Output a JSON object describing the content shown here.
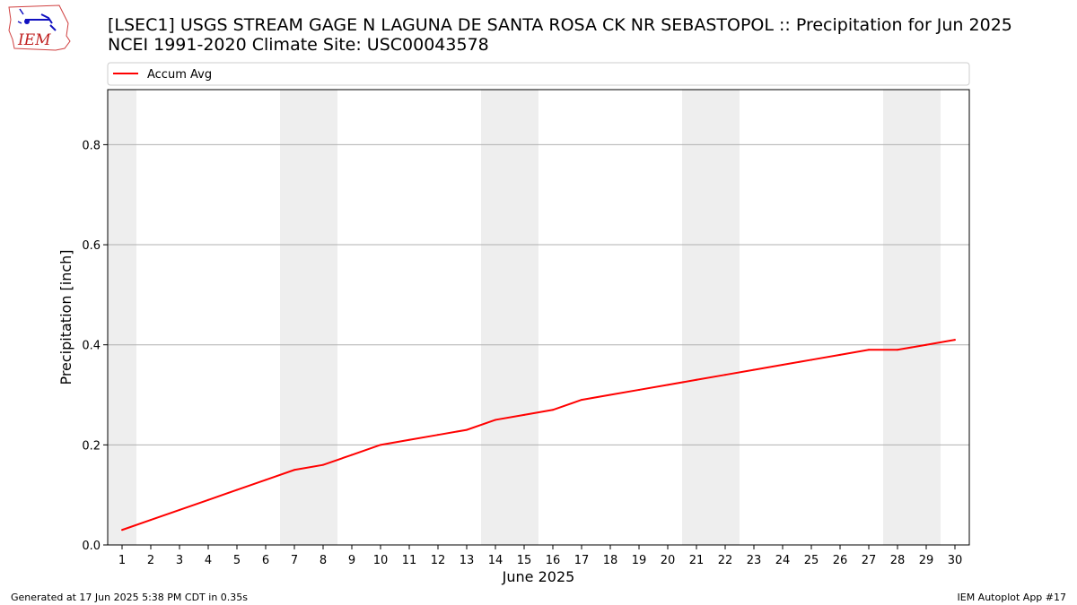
{
  "header": {
    "title": "[LSEC1] USGS STREAM GAGE  N LAGUNA DE SANTA ROSA CK NR SEBASTOPOL :: Precipitation for Jun 2025",
    "subtitle": "NCEI 1991-2020 Climate Site: USC00043578",
    "logo_text": "IEM"
  },
  "footer": {
    "generated": "Generated at 17 Jun 2025 5:38 PM CDT in 0.35s",
    "app": "IEM Autoplot App #17"
  },
  "chart_data": {
    "type": "line",
    "xlabel": "June 2025",
    "ylabel": "Precipitation [inch]",
    "x": [
      1,
      2,
      3,
      4,
      5,
      6,
      7,
      8,
      9,
      10,
      11,
      12,
      13,
      14,
      15,
      16,
      17,
      18,
      19,
      20,
      21,
      22,
      23,
      24,
      25,
      26,
      27,
      28,
      29,
      30
    ],
    "xlim": [
      0.5,
      30.5
    ],
    "ylim": [
      0,
      0.91
    ],
    "yticks": [
      0.0,
      0.2,
      0.4,
      0.6,
      0.8
    ],
    "ytick_labels": [
      "0.0",
      "0.2",
      "0.4",
      "0.6",
      "0.8"
    ],
    "grid": "horizontal",
    "legend_placement": "top",
    "weekend_bands": [
      [
        0.5,
        1.5
      ],
      [
        6.5,
        8.5
      ],
      [
        13.5,
        15.5
      ],
      [
        20.5,
        22.5
      ],
      [
        27.5,
        29.5
      ]
    ],
    "series": [
      {
        "name": "Accum Avg",
        "color": "#ff0000",
        "values": [
          0.03,
          0.05,
          0.07,
          0.09,
          0.11,
          0.13,
          0.15,
          0.16,
          0.18,
          0.2,
          0.21,
          0.22,
          0.23,
          0.25,
          0.26,
          0.27,
          0.29,
          0.3,
          0.31,
          0.32,
          0.33,
          0.34,
          0.35,
          0.36,
          0.37,
          0.38,
          0.39,
          0.39,
          0.4,
          0.41
        ]
      }
    ]
  }
}
